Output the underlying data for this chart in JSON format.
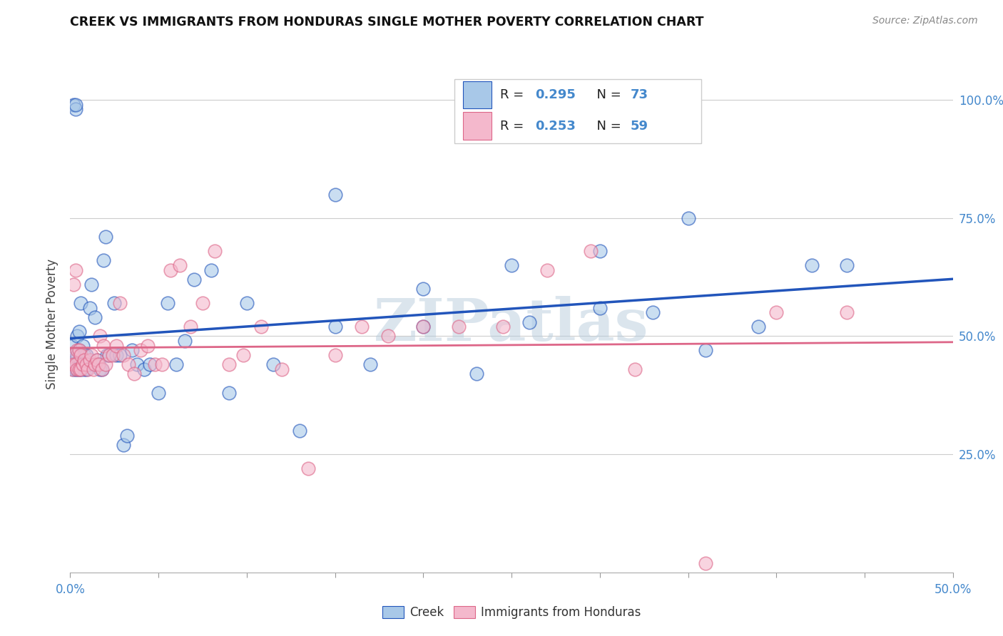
{
  "title": "CREEK VS IMMIGRANTS FROM HONDURAS SINGLE MOTHER POVERTY CORRELATION CHART",
  "source": "Source: ZipAtlas.com",
  "ylabel": "Single Mother Poverty",
  "creek_color": "#a8c8e8",
  "honduras_color": "#f4b8cc",
  "creek_line_color": "#2255bb",
  "honduras_line_color": "#dd6688",
  "creek_R": 0.295,
  "creek_N": 73,
  "honduras_R": 0.253,
  "honduras_N": 59,
  "xlim": [
    0.0,
    0.5
  ],
  "ylim": [
    0.0,
    1.05
  ],
  "watermark": "ZIPatlas",
  "creek_scatter_x": [
    0.001,
    0.001,
    0.002,
    0.002,
    0.002,
    0.003,
    0.003,
    0.003,
    0.003,
    0.004,
    0.004,
    0.004,
    0.005,
    0.005,
    0.005,
    0.005,
    0.006,
    0.006,
    0.006,
    0.007,
    0.007,
    0.008,
    0.008,
    0.009,
    0.009,
    0.01,
    0.011,
    0.012,
    0.013,
    0.014,
    0.015,
    0.016,
    0.017,
    0.018,
    0.019,
    0.02,
    0.021,
    0.022,
    0.025,
    0.026,
    0.028,
    0.03,
    0.032,
    0.035,
    0.038,
    0.042,
    0.045,
    0.05,
    0.055,
    0.06,
    0.065,
    0.07,
    0.08,
    0.09,
    0.1,
    0.115,
    0.13,
    0.15,
    0.17,
    0.2,
    0.23,
    0.26,
    0.3,
    0.33,
    0.36,
    0.39,
    0.42,
    0.44,
    0.15,
    0.2,
    0.25,
    0.3,
    0.35
  ],
  "creek_scatter_y": [
    0.44,
    0.48,
    0.43,
    0.46,
    0.99,
    0.43,
    0.45,
    0.98,
    0.99,
    0.43,
    0.46,
    0.5,
    0.43,
    0.45,
    0.47,
    0.51,
    0.43,
    0.45,
    0.57,
    0.44,
    0.48,
    0.43,
    0.46,
    0.43,
    0.46,
    0.44,
    0.56,
    0.61,
    0.44,
    0.54,
    0.45,
    0.44,
    0.43,
    0.43,
    0.66,
    0.71,
    0.46,
    0.46,
    0.57,
    0.46,
    0.46,
    0.27,
    0.29,
    0.47,
    0.44,
    0.43,
    0.44,
    0.38,
    0.57,
    0.44,
    0.49,
    0.62,
    0.64,
    0.38,
    0.57,
    0.44,
    0.3,
    0.8,
    0.44,
    0.6,
    0.42,
    0.53,
    0.56,
    0.55,
    0.47,
    0.52,
    0.65,
    0.65,
    0.52,
    0.52,
    0.65,
    0.68,
    0.75
  ],
  "honduras_scatter_x": [
    0.001,
    0.001,
    0.002,
    0.002,
    0.003,
    0.003,
    0.004,
    0.004,
    0.005,
    0.005,
    0.006,
    0.006,
    0.007,
    0.008,
    0.009,
    0.01,
    0.011,
    0.012,
    0.013,
    0.014,
    0.015,
    0.016,
    0.017,
    0.018,
    0.019,
    0.02,
    0.022,
    0.024,
    0.026,
    0.028,
    0.03,
    0.033,
    0.036,
    0.04,
    0.044,
    0.048,
    0.052,
    0.057,
    0.062,
    0.068,
    0.075,
    0.082,
    0.09,
    0.098,
    0.108,
    0.12,
    0.135,
    0.15,
    0.165,
    0.18,
    0.2,
    0.22,
    0.245,
    0.27,
    0.295,
    0.32,
    0.36,
    0.4,
    0.44
  ],
  "honduras_scatter_y": [
    0.43,
    0.46,
    0.44,
    0.61,
    0.44,
    0.64,
    0.43,
    0.47,
    0.43,
    0.47,
    0.43,
    0.46,
    0.44,
    0.45,
    0.44,
    0.43,
    0.45,
    0.46,
    0.43,
    0.44,
    0.45,
    0.44,
    0.5,
    0.43,
    0.48,
    0.44,
    0.46,
    0.46,
    0.48,
    0.57,
    0.46,
    0.44,
    0.42,
    0.47,
    0.48,
    0.44,
    0.44,
    0.64,
    0.65,
    0.52,
    0.57,
    0.68,
    0.44,
    0.46,
    0.52,
    0.43,
    0.22,
    0.46,
    0.52,
    0.5,
    0.52,
    0.52,
    0.52,
    0.64,
    0.68,
    0.43,
    0.02,
    0.55,
    0.55
  ]
}
